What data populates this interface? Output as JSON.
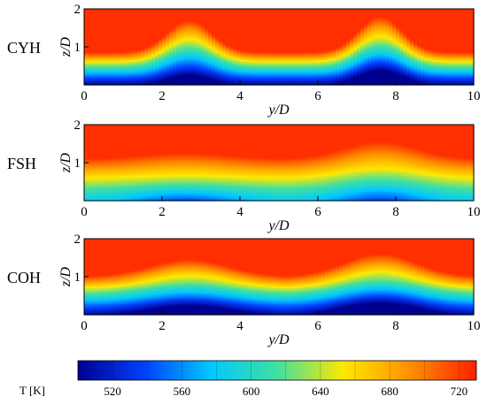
{
  "chart_data": {
    "type": "heatmap",
    "colorbar": {
      "title": "T [K]",
      "min": 500,
      "max": 730,
      "ticks": [
        "520",
        "560",
        "600",
        "640",
        "680",
        "720"
      ],
      "tick_values": [
        520,
        560,
        600,
        640,
        680,
        720
      ],
      "colors": [
        "#00008f",
        "#0040ff",
        "#00c8ff",
        "#40e0a0",
        "#ffe800",
        "#ff9000",
        "#ff2000"
      ]
    },
    "x_range": [
      0,
      10
    ],
    "y_range": [
      0,
      2
    ],
    "x_ticks": [
      "0",
      "2",
      "4",
      "6",
      "8",
      "10"
    ],
    "y_ticks": [
      "0",
      "1",
      "2"
    ],
    "xlabel": "y/D",
    "ylabel": "z/D",
    "panels": [
      {
        "name": "CYH",
        "T_max": 725,
        "T_min": 505,
        "base_layer_depth": 0.3,
        "bumps": [
          {
            "y_center": 2.7,
            "z_height": 1.15,
            "width": 0.8,
            "core_T": 600
          },
          {
            "y_center": 7.6,
            "z_height": 1.25,
            "width": 0.78,
            "core_T": 505
          }
        ]
      },
      {
        "name": "FSH",
        "T_max": 725,
        "T_min": 585,
        "base_layer_depth": 0.55,
        "bumps": [
          {
            "y_center": 2.6,
            "z_height": 0.7,
            "width": 1.5,
            "core_T": 600
          },
          {
            "y_center": 7.6,
            "z_height": 1.0,
            "width": 1.3,
            "core_T": 590
          }
        ]
      },
      {
        "name": "COH",
        "T_max": 725,
        "T_min": 510,
        "base_layer_depth": 0.45,
        "bumps": [
          {
            "y_center": 2.7,
            "z_height": 0.9,
            "width": 1.4,
            "core_T": 560
          },
          {
            "y_center": 7.6,
            "z_height": 1.05,
            "width": 1.3,
            "core_T": 512
          }
        ]
      }
    ]
  }
}
